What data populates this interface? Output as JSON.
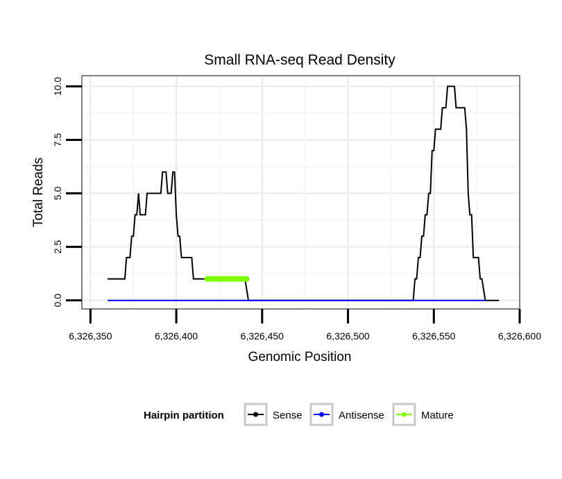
{
  "chart_data": {
    "type": "line",
    "title": "Small RNA-seq Read Density",
    "xlabel": "Genomic Position",
    "ylabel": "Total Reads",
    "xlim": [
      6326345,
      6326600
    ],
    "ylim": [
      -0.4,
      10.5
    ],
    "x_ticks": [
      6326350,
      6326400,
      6326450,
      6326500,
      6326550,
      6326600
    ],
    "x_tick_labels": [
      "6,326,350",
      "6,326,400",
      "6,326,450",
      "6,326,500",
      "6,326,550",
      "6,326,600"
    ],
    "y_ticks": [
      0,
      2.5,
      5,
      7.5,
      10
    ],
    "y_tick_labels": [
      "0.0",
      "2.5",
      "5.0",
      "7.5",
      "10.0"
    ],
    "grid": true,
    "legend": {
      "title": "Hairpin partition",
      "position": "bottom",
      "entries": [
        {
          "label": "Sense",
          "color": "#000000"
        },
        {
          "label": "Antisense",
          "color": "#0000ff"
        },
        {
          "label": "Mature",
          "color": "#7fff00"
        }
      ]
    },
    "series": [
      {
        "name": "Sense",
        "color": "#000000",
        "x": [
          6326360,
          6326370,
          6326371,
          6326372,
          6326373,
          6326374,
          6326375,
          6326376,
          6326377,
          6326378,
          6326379,
          6326380,
          6326381,
          6326382,
          6326383,
          6326390,
          6326391,
          6326392,
          6326393,
          6326394,
          6326395,
          6326396,
          6326397,
          6326398,
          6326399,
          6326400,
          6326401,
          6326402,
          6326403,
          6326404,
          6326409,
          6326410,
          6326411,
          6326440,
          6326441,
          6326442,
          6326538,
          6326539,
          6326540,
          6326541,
          6326542,
          6326543,
          6326544,
          6326545,
          6326546,
          6326547,
          6326548,
          6326549,
          6326550,
          6326551,
          6326552,
          6326553,
          6326554,
          6326555,
          6326556,
          6326557,
          6326558,
          6326559,
          6326560,
          6326561,
          6326562,
          6326563,
          6326564,
          6326565,
          6326566,
          6326567,
          6326568,
          6326569,
          6326570,
          6326571,
          6326572,
          6326573,
          6326574,
          6326575,
          6326576,
          6326577,
          6326578,
          6326579,
          6326580,
          6326581,
          6326588
        ],
        "y": [
          1,
          1,
          2,
          2,
          2,
          3,
          3,
          4,
          4,
          5,
          4,
          4,
          4,
          4,
          5,
          5,
          5,
          6,
          6,
          6,
          5,
          5,
          5,
          6,
          6,
          4,
          3,
          3,
          2,
          2,
          2,
          1,
          1,
          1,
          0.5,
          0,
          0,
          1,
          1,
          2,
          2,
          3,
          3,
          4,
          4,
          5,
          5,
          7,
          7,
          8,
          8,
          8,
          8,
          9,
          9,
          9,
          10,
          10,
          10,
          10,
          10,
          9,
          9,
          9,
          9,
          9,
          9,
          8,
          5,
          4,
          4,
          2,
          2,
          2,
          2,
          1,
          1,
          0.5,
          0,
          0,
          0
        ]
      },
      {
        "name": "Antisense",
        "color": "#0000ff",
        "x": [
          6326360,
          6326580
        ],
        "y": [
          0,
          0
        ]
      },
      {
        "name": "Mature",
        "color": "#7fff00",
        "x": [
          6326418,
          6326441
        ],
        "y": [
          1,
          1
        ]
      }
    ]
  }
}
